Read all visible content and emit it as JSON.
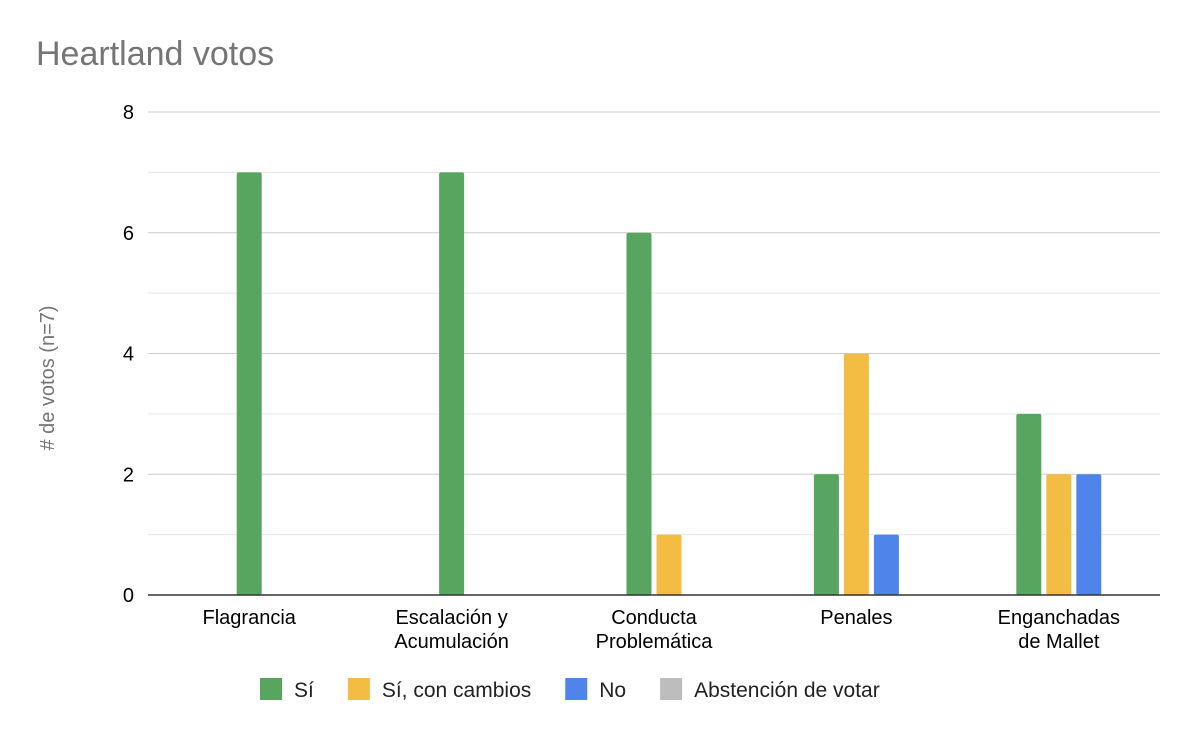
{
  "chart_data": {
    "type": "bar",
    "title": "Heartland votos",
    "xlabel": "",
    "ylabel": "# de votos (n=7)",
    "ylim": [
      0,
      8
    ],
    "yticks": [
      0,
      2,
      4,
      6,
      8
    ],
    "grid": true,
    "legend_position": "bottom",
    "categories": [
      [
        "Flagrancia"
      ],
      [
        "Escalación y",
        "Acumulación"
      ],
      [
        "Conducta",
        "Problemática"
      ],
      [
        "Penales"
      ],
      [
        "Enganchadas",
        "de Mallet"
      ]
    ],
    "series": [
      {
        "name": "Sí",
        "color": "#57a55f",
        "values": [
          7,
          7,
          6,
          2,
          3
        ]
      },
      {
        "name": "Sí, con cambios",
        "color": "#f2bd42",
        "values": [
          0,
          0,
          1,
          4,
          2
        ]
      },
      {
        "name": "No",
        "color": "#4f85ea",
        "values": [
          0,
          0,
          0,
          1,
          2
        ]
      },
      {
        "name": "Abstención de votar",
        "color": "#bdbdbd",
        "values": [
          0,
          0,
          0,
          0,
          0
        ]
      }
    ]
  }
}
